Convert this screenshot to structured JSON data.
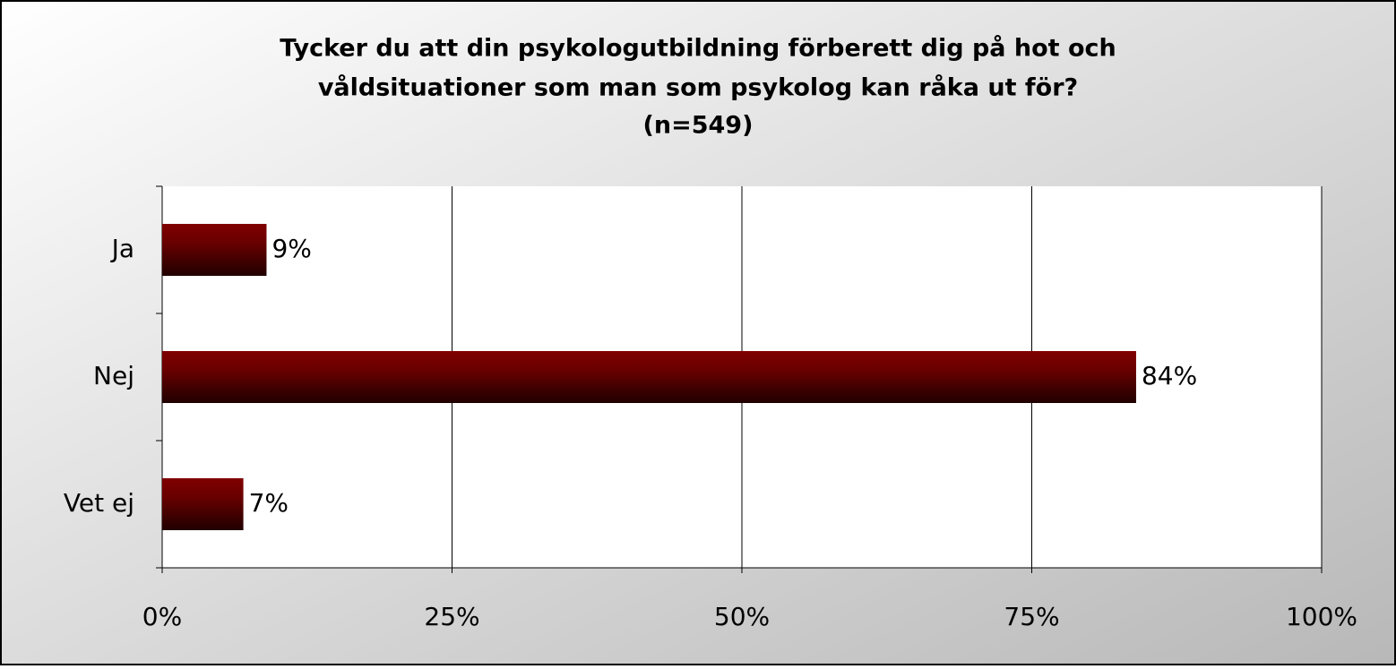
{
  "chart_data": {
    "type": "bar",
    "orientation": "horizontal",
    "title": [
      "Tycker du att din psykologutbildning förberett dig på hot och",
      "våldsituationer som man som psykolog kan råka ut för?",
      "(n=549)"
    ],
    "categories": [
      "Ja",
      "Nej",
      "Vet ej"
    ],
    "values": [
      9,
      84,
      7
    ],
    "value_labels": [
      "9%",
      "84%",
      "7%"
    ],
    "color": "#7a0000",
    "xlim": [
      0,
      100
    ],
    "xticks": [
      {
        "value": 0,
        "label": "0%"
      },
      {
        "value": 25,
        "label": "25%"
      },
      {
        "value": 50,
        "label": "50%"
      },
      {
        "value": 75,
        "label": "75%"
      },
      {
        "value": 100,
        "label": "100%"
      }
    ],
    "grid": true
  }
}
